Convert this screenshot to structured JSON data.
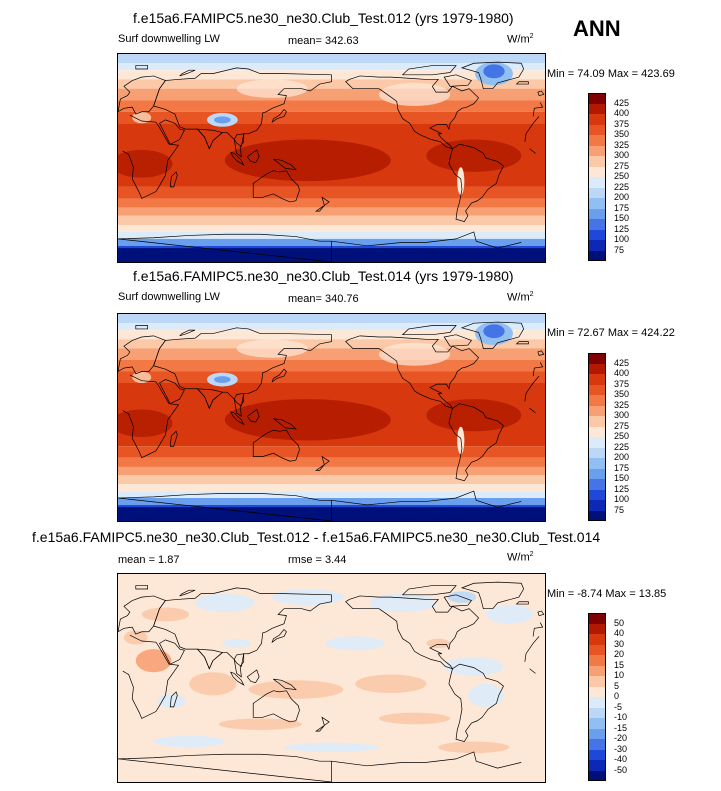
{
  "season": "ANN",
  "panels": [
    {
      "title": "f.e15a6.FAMIPC5.ne30_ne30.Club_Test.012 (yrs 1979-1980)",
      "left_label": "Surf downwelling LW",
      "center_label": "mean= 342.63",
      "units": "W/m",
      "units_exp": "2",
      "minmax": "Min =  74.09 Max = 423.69",
      "colorbar": {
        "labels": [
          "425",
          "400",
          "375",
          "350",
          "325",
          "300",
          "275",
          "250",
          "225",
          "200",
          "175",
          "150",
          "125",
          "100",
          "75"
        ],
        "colors": [
          "#7f0000",
          "#b21a00",
          "#d8380d",
          "#e85525",
          "#f27845",
          "#f7a074",
          "#fbc8a8",
          "#fde8d8",
          "#dcebf9",
          "#bdd8f6",
          "#92bff2",
          "#6a9fee",
          "#4474e6",
          "#2048d8",
          "#0c28b4",
          "#00107a"
        ]
      },
      "map": {
        "variant": "full"
      }
    },
    {
      "title": "f.e15a6.FAMIPC5.ne30_ne30.Club_Test.014 (yrs 1979-1980)",
      "left_label": "Surf downwelling LW",
      "center_label": "mean= 340.76",
      "units": "W/m",
      "units_exp": "2",
      "minmax": "Min =  72.67 Max = 424.22",
      "colorbar": {
        "labels": [
          "425",
          "400",
          "375",
          "350",
          "325",
          "300",
          "275",
          "250",
          "225",
          "200",
          "175",
          "150",
          "125",
          "100",
          "75"
        ],
        "colors": [
          "#7f0000",
          "#b21a00",
          "#d8380d",
          "#e85525",
          "#f27845",
          "#f7a074",
          "#fbc8a8",
          "#fde8d8",
          "#dcebf9",
          "#bdd8f6",
          "#92bff2",
          "#6a9fee",
          "#4474e6",
          "#2048d8",
          "#0c28b4",
          "#00107a"
        ]
      },
      "map": {
        "variant": "full"
      }
    },
    {
      "title": "f.e15a6.FAMIPC5.ne30_ne30.Club_Test.012 - f.e15a6.FAMIPC5.ne30_ne30.Club_Test.014",
      "left_label": "mean =   1.87",
      "center_label": "rmse =   3.44",
      "units": "W/m",
      "units_exp": "2",
      "minmax": "Min =  -8.74 Max =  13.85",
      "colorbar": {
        "labels": [
          "50",
          "40",
          "30",
          "20",
          "15",
          "10",
          "5",
          "0",
          "-5",
          "-10",
          "-15",
          "-20",
          "-30",
          "-40",
          "-50"
        ],
        "colors": [
          "#7f0000",
          "#b21a00",
          "#d8380d",
          "#e85525",
          "#f27845",
          "#f7a074",
          "#fbc8a8",
          "#fde8d8",
          "#dcebf9",
          "#bdd8f6",
          "#92bff2",
          "#6a9fee",
          "#4474e6",
          "#2048d8",
          "#0c28b4",
          "#00107a"
        ]
      },
      "map": {
        "variant": "diff"
      }
    }
  ]
}
